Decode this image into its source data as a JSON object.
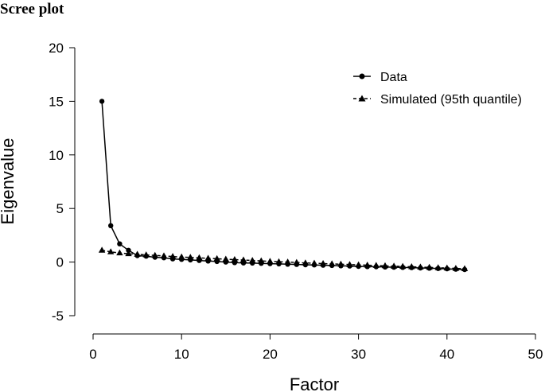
{
  "chart_data": {
    "type": "line",
    "title": "Scree plot",
    "xlabel": "Factor",
    "ylabel": "Eigenvalue",
    "xlim": [
      0,
      50
    ],
    "ylim": [
      -5,
      20
    ],
    "xticks": [
      0,
      10,
      20,
      30,
      40,
      50
    ],
    "yticks": [
      -5,
      0,
      5,
      10,
      15,
      20
    ],
    "grid": false,
    "legend": "top-right",
    "series": [
      {
        "name": "Data",
        "marker": "circle",
        "linestyle": "solid",
        "x": [
          1,
          2,
          3,
          4,
          5,
          6,
          7,
          8,
          9,
          10,
          11,
          12,
          13,
          14,
          15,
          16,
          17,
          18,
          19,
          20,
          21,
          22,
          23,
          24,
          25,
          26,
          27,
          28,
          29,
          30,
          31,
          32,
          33,
          34,
          35,
          36,
          37,
          38,
          39,
          40,
          41,
          42
        ],
        "values": [
          15.0,
          3.4,
          1.7,
          1.1,
          0.6,
          0.55,
          0.45,
          0.4,
          0.3,
          0.25,
          0.2,
          0.15,
          0.1,
          0.05,
          0.0,
          -0.05,
          -0.08,
          -0.1,
          -0.12,
          -0.15,
          -0.17,
          -0.2,
          -0.22,
          -0.25,
          -0.27,
          -0.3,
          -0.32,
          -0.35,
          -0.37,
          -0.4,
          -0.42,
          -0.44,
          -0.46,
          -0.48,
          -0.5,
          -0.52,
          -0.55,
          -0.57,
          -0.6,
          -0.63,
          -0.67,
          -0.7
        ]
      },
      {
        "name": "Simulated (95th quantile)",
        "marker": "triangle",
        "linestyle": "dashed",
        "x": [
          1,
          2,
          3,
          4,
          5,
          6,
          7,
          8,
          9,
          10,
          11,
          12,
          13,
          14,
          15,
          16,
          17,
          18,
          19,
          20,
          21,
          22,
          23,
          24,
          25,
          26,
          27,
          28,
          29,
          30,
          31,
          32,
          33,
          34,
          35,
          36,
          37,
          38,
          39,
          40,
          41,
          42
        ],
        "values": [
          1.1,
          0.95,
          0.85,
          0.78,
          0.72,
          0.67,
          0.62,
          0.57,
          0.52,
          0.47,
          0.43,
          0.39,
          0.35,
          0.31,
          0.27,
          0.23,
          0.19,
          0.15,
          0.11,
          0.07,
          0.03,
          0.0,
          -0.04,
          -0.08,
          -0.11,
          -0.14,
          -0.17,
          -0.2,
          -0.23,
          -0.26,
          -0.29,
          -0.32,
          -0.35,
          -0.38,
          -0.41,
          -0.44,
          -0.47,
          -0.5,
          -0.53,
          -0.56,
          -0.59,
          -0.62
        ]
      }
    ]
  }
}
